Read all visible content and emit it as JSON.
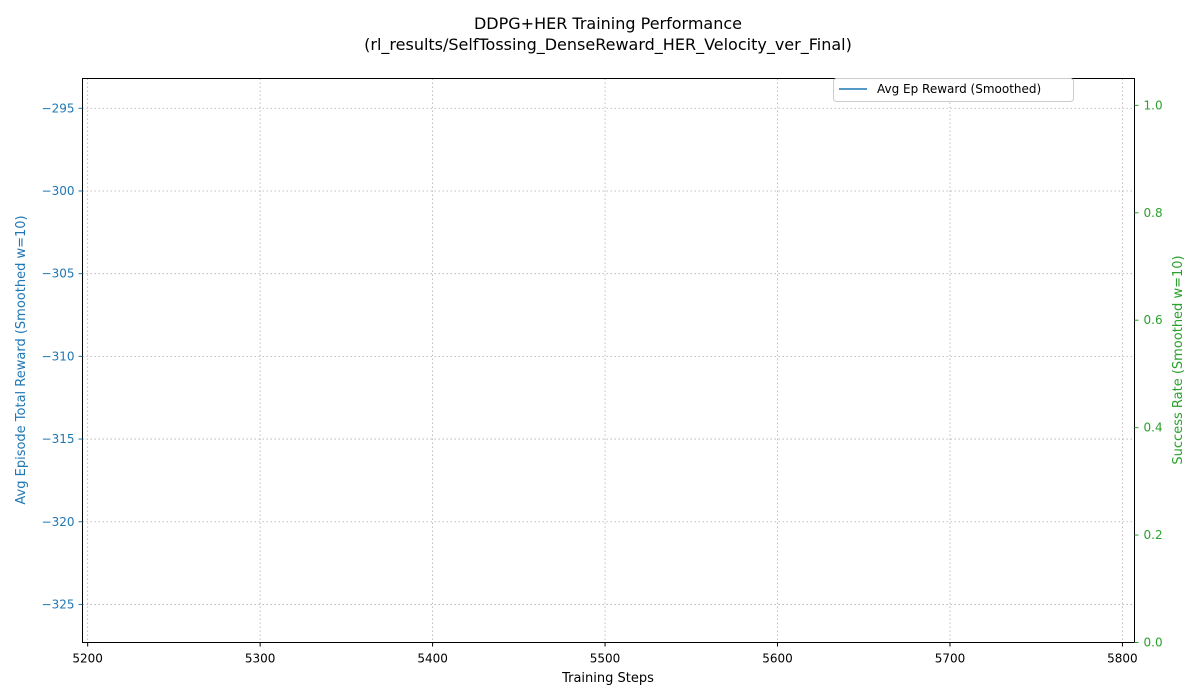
{
  "chart_data": {
    "type": "line",
    "title": "DDPG+HER Training Performance",
    "subtitle": "(rl_results/SelfTossing_DenseReward_HER_Velocity_ver_Final)",
    "xlabel": "Training Steps",
    "ylabel_left": "Avg Episode Total Reward (Smoothed w=10)",
    "ylabel_right": "Success Rate (Smoothed w=10)",
    "xlim": [
      5197,
      5807
    ],
    "ylim_left": [
      -327.3,
      -293.2
    ],
    "ylim_right": [
      0.0,
      1.05
    ],
    "x_ticks": [
      5200,
      5300,
      5400,
      5500,
      5600,
      5700,
      5800
    ],
    "y_left_ticks": [
      -295,
      -300,
      -305,
      -310,
      -315,
      -320,
      -325
    ],
    "y_right_ticks": [
      0.0,
      0.2,
      0.4,
      0.6,
      0.8,
      1.0
    ],
    "grid": true,
    "legend_position": "top-right",
    "colors": {
      "left_axis": "#1f77b4",
      "right_axis": "#2ca02c",
      "series": "#1f77b4"
    },
    "series": [
      {
        "name": "Avg Ep Reward (Smoothed)",
        "axis": "left",
        "color": "#1f77b4",
        "x": [],
        "y": []
      }
    ]
  }
}
